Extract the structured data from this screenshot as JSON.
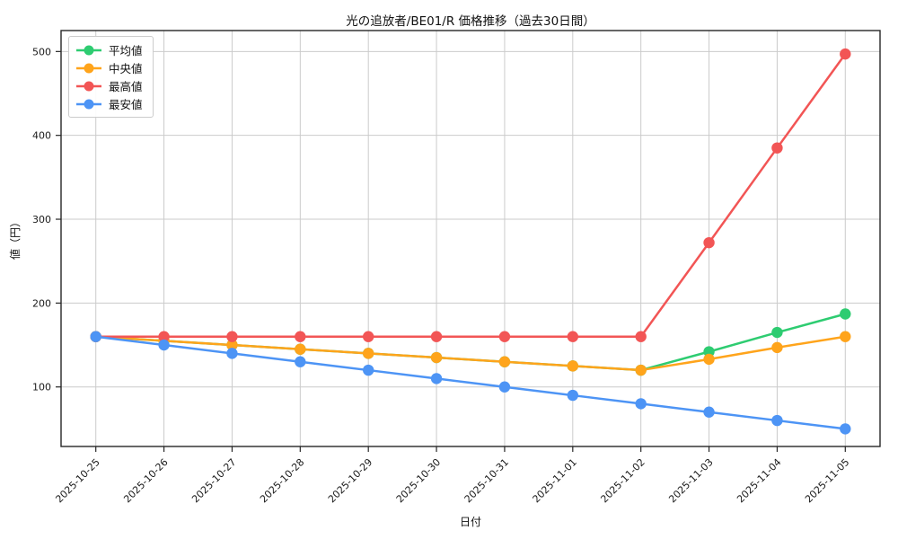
{
  "title": "光の追放者/BE01/R 価格推移（過去30日間）",
  "chart_data": {
    "type": "line",
    "x": [
      "2025-10-25",
      "2025-10-26",
      "2025-10-27",
      "2025-10-28",
      "2025-10-29",
      "2025-10-30",
      "2025-10-31",
      "2025-11-01",
      "2025-11-02",
      "2025-11-03",
      "2025-11-04",
      "2025-11-05"
    ],
    "series": [
      {
        "name": "平均値",
        "key": "average",
        "color": "#2ecc71",
        "values": [
          160,
          155,
          150,
          145,
          140,
          135,
          130,
          125,
          120,
          142,
          165,
          187
        ]
      },
      {
        "name": "中央値",
        "key": "median",
        "color": "#ffa41b",
        "values": [
          160,
          155,
          150,
          145,
          140,
          135,
          130,
          125,
          120,
          133,
          147,
          160
        ]
      },
      {
        "name": "最高値",
        "key": "max",
        "color": "#f25555",
        "values": [
          160,
          160,
          160,
          160,
          160,
          160,
          160,
          160,
          160,
          272,
          385,
          497
        ]
      },
      {
        "name": "最安値",
        "key": "min",
        "color": "#4d94f5",
        "values": [
          160,
          150,
          140,
          130,
          120,
          110,
          100,
          90,
          80,
          70,
          60,
          50
        ]
      }
    ],
    "title": "光の追放者/BE01/R 価格推移（過去30日間）",
    "xlabel": "日付",
    "ylabel": "値（円）",
    "ylim": [
      29,
      525
    ],
    "yticks": [
      100,
      200,
      300,
      400,
      500
    ],
    "grid": true,
    "legend_position": "upper-left",
    "grid_color": "#cbcbcb",
    "frame_color": "#262626",
    "background_color": "#ffffff"
  }
}
